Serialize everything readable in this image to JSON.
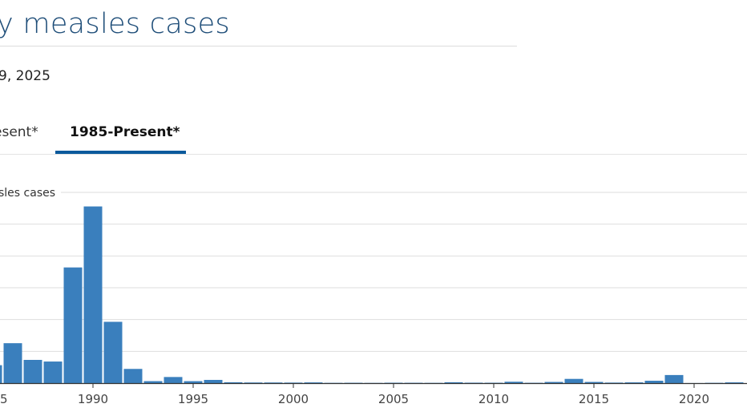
{
  "header": {
    "title": "y measles cases",
    "date": "9, 2025"
  },
  "tabs": [
    {
      "label": "esent*",
      "active": false
    },
    {
      "label": "1985-Present*",
      "active": true
    }
  ],
  "colors": {
    "bar": "#3a7fbd",
    "accent": "#0b5a9c",
    "title": "#1f4e79"
  },
  "chart_data": {
    "type": "bar",
    "ylabel": "sles cases",
    "grid": true,
    "ylim": [
      0,
      30000
    ],
    "xlim": [
      1985,
      2022
    ],
    "x_tick_labels": [
      {
        "year": 1985,
        "label": "5"
      },
      {
        "year": 1990,
        "label": "1990"
      },
      {
        "year": 1995,
        "label": "1995"
      },
      {
        "year": 2000,
        "label": "2000"
      },
      {
        "year": 2005,
        "label": "2005"
      },
      {
        "year": 2010,
        "label": "2010"
      },
      {
        "year": 2015,
        "label": "2015"
      },
      {
        "year": 2020,
        "label": "2020"
      }
    ],
    "categories": [
      1985,
      1986,
      1987,
      1988,
      1989,
      1990,
      1991,
      1992,
      1993,
      1994,
      1995,
      1996,
      1997,
      1998,
      1999,
      2000,
      2001,
      2002,
      2003,
      2004,
      2005,
      2006,
      2007,
      2008,
      2009,
      2010,
      2011,
      2012,
      2013,
      2014,
      2015,
      2016,
      2017,
      2018,
      2019,
      2020,
      2021,
      2022
    ],
    "values": [
      2822,
      6282,
      3655,
      3396,
      18193,
      27786,
      9643,
      2237,
      312,
      963,
      309,
      508,
      138,
      100,
      100,
      86,
      116,
      44,
      56,
      37,
      66,
      55,
      43,
      140,
      71,
      63,
      220,
      55,
      187,
      667,
      188,
      86,
      120,
      375,
      1274,
      13,
      49,
      121
    ]
  }
}
